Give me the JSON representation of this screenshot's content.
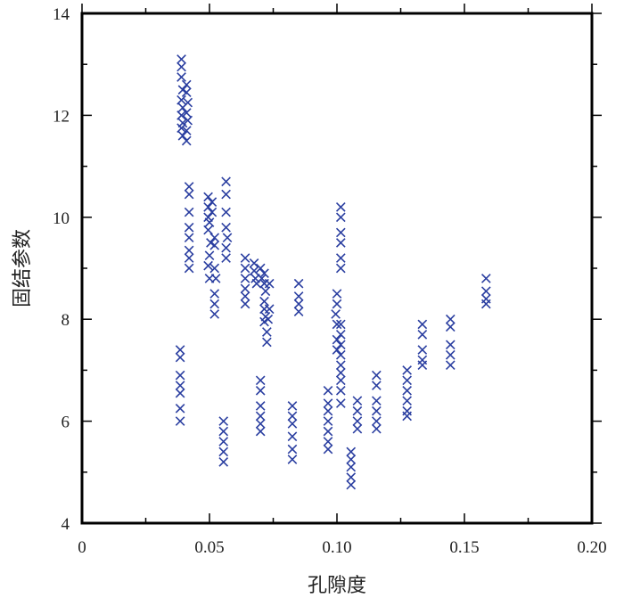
{
  "chart_data": {
    "type": "scatter",
    "title": "",
    "xlabel": "孔隙度",
    "ylabel": "固结参数",
    "xlim": [
      0,
      0.2
    ],
    "ylim": [
      4,
      14
    ],
    "x_ticks": [
      0,
      0.05,
      0.1,
      0.15,
      0.2
    ],
    "x_tick_labels": [
      "0",
      "0.05",
      "0.10",
      "0.15",
      "0.20"
    ],
    "y_ticks": [
      4,
      6,
      8,
      10,
      12,
      14
    ],
    "y_tick_labels": [
      "4",
      "6",
      "8",
      "10",
      "12",
      "14"
    ],
    "grid": false,
    "marker": "x",
    "marker_color": "#2a3ea0",
    "series": [
      {
        "points": [
          [
            0.0385,
            7.4
          ],
          [
            0.0385,
            7.25
          ],
          [
            0.0385,
            6.9
          ],
          [
            0.0385,
            6.7
          ],
          [
            0.0385,
            6.55
          ],
          [
            0.0385,
            6.25
          ],
          [
            0.0385,
            6.0
          ],
          [
            0.039,
            13.1
          ],
          [
            0.039,
            12.95
          ],
          [
            0.039,
            12.75
          ],
          [
            0.0395,
            12.5
          ],
          [
            0.039,
            12.3
          ],
          [
            0.0395,
            12.15
          ],
          [
            0.039,
            12.0
          ],
          [
            0.0395,
            11.85
          ],
          [
            0.039,
            11.75
          ],
          [
            0.0395,
            11.6
          ],
          [
            0.041,
            12.6
          ],
          [
            0.041,
            12.45
          ],
          [
            0.0415,
            12.25
          ],
          [
            0.041,
            12.05
          ],
          [
            0.0415,
            11.9
          ],
          [
            0.041,
            11.7
          ],
          [
            0.041,
            11.5
          ],
          [
            0.042,
            10.6
          ],
          [
            0.042,
            10.45
          ],
          [
            0.042,
            10.1
          ],
          [
            0.042,
            9.8
          ],
          [
            0.042,
            9.6
          ],
          [
            0.042,
            9.35
          ],
          [
            0.042,
            9.2
          ],
          [
            0.042,
            9.0
          ],
          [
            0.0495,
            10.4
          ],
          [
            0.0495,
            10.2
          ],
          [
            0.0495,
            10.0
          ],
          [
            0.05,
            9.9
          ],
          [
            0.0495,
            9.75
          ],
          [
            0.0505,
            9.5
          ],
          [
            0.05,
            9.25
          ],
          [
            0.0495,
            9.05
          ],
          [
            0.05,
            8.8
          ],
          [
            0.051,
            10.3
          ],
          [
            0.051,
            10.1
          ],
          [
            0.052,
            9.6
          ],
          [
            0.052,
            9.45
          ],
          [
            0.052,
            9.0
          ],
          [
            0.0525,
            8.8
          ],
          [
            0.052,
            8.5
          ],
          [
            0.052,
            8.3
          ],
          [
            0.052,
            8.1
          ],
          [
            0.0565,
            10.7
          ],
          [
            0.0565,
            10.45
          ],
          [
            0.0565,
            10.1
          ],
          [
            0.0565,
            9.8
          ],
          [
            0.057,
            9.6
          ],
          [
            0.0565,
            9.4
          ],
          [
            0.0565,
            9.2
          ],
          [
            0.0555,
            6.0
          ],
          [
            0.0555,
            5.8
          ],
          [
            0.0555,
            5.6
          ],
          [
            0.0555,
            5.4
          ],
          [
            0.0555,
            5.2
          ],
          [
            0.064,
            9.2
          ],
          [
            0.064,
            9.0
          ],
          [
            0.064,
            8.8
          ],
          [
            0.064,
            8.6
          ],
          [
            0.064,
            8.45
          ],
          [
            0.064,
            8.3
          ],
          [
            0.0675,
            9.1
          ],
          [
            0.0675,
            8.95
          ],
          [
            0.068,
            8.8
          ],
          [
            0.0685,
            8.7
          ],
          [
            0.07,
            9.0
          ],
          [
            0.0705,
            8.8
          ],
          [
            0.0715,
            8.9
          ],
          [
            0.0715,
            8.7
          ],
          [
            0.072,
            8.55
          ],
          [
            0.0715,
            8.35
          ],
          [
            0.0715,
            8.2
          ],
          [
            0.072,
            8.05
          ],
          [
            0.0715,
            7.95
          ],
          [
            0.0725,
            7.75
          ],
          [
            0.0725,
            7.55
          ],
          [
            0.0735,
            8.7
          ],
          [
            0.0735,
            8.2
          ],
          [
            0.073,
            8.0
          ],
          [
            0.07,
            6.8
          ],
          [
            0.07,
            6.6
          ],
          [
            0.07,
            6.3
          ],
          [
            0.07,
            6.1
          ],
          [
            0.07,
            5.95
          ],
          [
            0.07,
            5.8
          ],
          [
            0.0825,
            6.3
          ],
          [
            0.0825,
            6.1
          ],
          [
            0.0825,
            5.95
          ],
          [
            0.0825,
            5.7
          ],
          [
            0.0825,
            5.45
          ],
          [
            0.0825,
            5.25
          ],
          [
            0.085,
            8.7
          ],
          [
            0.085,
            8.45
          ],
          [
            0.085,
            8.3
          ],
          [
            0.085,
            8.15
          ],
          [
            0.0965,
            6.6
          ],
          [
            0.0965,
            6.35
          ],
          [
            0.0965,
            6.2
          ],
          [
            0.0965,
            6.0
          ],
          [
            0.0965,
            5.8
          ],
          [
            0.0965,
            5.6
          ],
          [
            0.0965,
            5.45
          ],
          [
            0.1,
            8.5
          ],
          [
            0.1,
            8.3
          ],
          [
            0.0995,
            8.1
          ],
          [
            0.1,
            7.9
          ],
          [
            0.1,
            7.6
          ],
          [
            0.1,
            7.4
          ],
          [
            0.1015,
            10.2
          ],
          [
            0.1015,
            10.0
          ],
          [
            0.1015,
            9.7
          ],
          [
            0.1015,
            9.5
          ],
          [
            0.1015,
            9.2
          ],
          [
            0.1015,
            9.0
          ],
          [
            0.1015,
            7.9
          ],
          [
            0.1015,
            7.7
          ],
          [
            0.1015,
            7.5
          ],
          [
            0.1015,
            7.3
          ],
          [
            0.1015,
            7.1
          ],
          [
            0.1015,
            6.95
          ],
          [
            0.1015,
            6.8
          ],
          [
            0.1015,
            6.6
          ],
          [
            0.1015,
            6.35
          ],
          [
            0.1055,
            5.4
          ],
          [
            0.1055,
            5.25
          ],
          [
            0.1055,
            5.1
          ],
          [
            0.1055,
            4.9
          ],
          [
            0.1055,
            4.75
          ],
          [
            0.108,
            6.4
          ],
          [
            0.108,
            6.2
          ],
          [
            0.108,
            6.0
          ],
          [
            0.108,
            5.85
          ],
          [
            0.1155,
            6.9
          ],
          [
            0.1155,
            6.7
          ],
          [
            0.1155,
            6.4
          ],
          [
            0.1155,
            6.2
          ],
          [
            0.1155,
            6.0
          ],
          [
            0.1155,
            5.85
          ],
          [
            0.1275,
            7.0
          ],
          [
            0.1275,
            6.8
          ],
          [
            0.1275,
            6.6
          ],
          [
            0.1275,
            6.4
          ],
          [
            0.1275,
            6.2
          ],
          [
            0.1275,
            6.1
          ],
          [
            0.1335,
            7.9
          ],
          [
            0.1335,
            7.7
          ],
          [
            0.1335,
            7.4
          ],
          [
            0.1335,
            7.2
          ],
          [
            0.1335,
            7.1
          ],
          [
            0.1445,
            8.0
          ],
          [
            0.1445,
            7.85
          ],
          [
            0.1445,
            7.5
          ],
          [
            0.1445,
            7.3
          ],
          [
            0.1445,
            7.1
          ],
          [
            0.1585,
            8.8
          ],
          [
            0.1585,
            8.55
          ],
          [
            0.1585,
            8.4
          ],
          [
            0.1585,
            8.3
          ]
        ]
      }
    ]
  }
}
